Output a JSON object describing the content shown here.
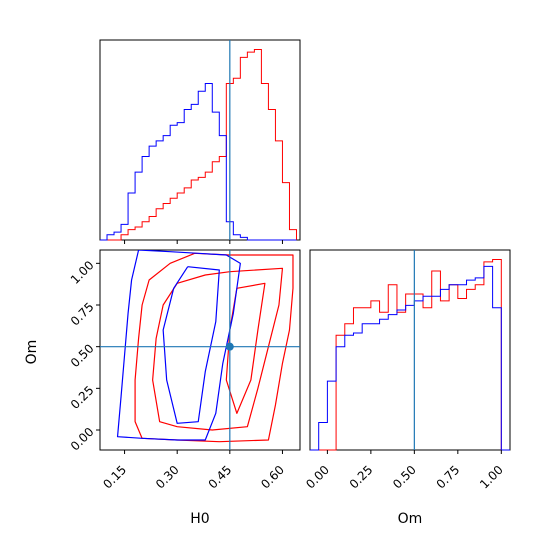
{
  "chart_data": {
    "type": "corner",
    "parameters": [
      "H0",
      "Om"
    ],
    "truth": {
      "H0": 0.45,
      "Om": 0.5
    },
    "truth_color": "#1f77b4",
    "series": [
      {
        "name": "",
        "color": "#ff0000"
      },
      {
        "name": "",
        "color": "#0000ff"
      }
    ],
    "hist_h0": {
      "x_range": [
        0.08,
        0.65
      ],
      "bin_edges": [
        0.08,
        0.1,
        0.12,
        0.14,
        0.16,
        0.18,
        0.2,
        0.22,
        0.24,
        0.26,
        0.28,
        0.3,
        0.32,
        0.34,
        0.36,
        0.38,
        0.4,
        0.42,
        0.44,
        0.46,
        0.48,
        0.5,
        0.52,
        0.54,
        0.56,
        0.58,
        0.6,
        0.62,
        0.64
      ],
      "red": [
        0,
        0,
        0,
        2,
        4,
        5,
        7,
        9,
        12,
        14,
        16,
        18,
        20,
        23,
        24,
        26,
        30,
        32,
        60,
        62,
        70,
        72,
        73,
        60,
        50,
        38,
        22,
        4
      ],
      "blue": [
        0,
        2,
        3,
        6,
        18,
        26,
        32,
        36,
        38,
        40,
        44,
        45,
        50,
        52,
        57,
        60,
        49,
        40,
        7,
        2,
        1,
        0,
        0,
        0,
        0,
        0,
        0,
        0
      ]
    },
    "hist_om": {
      "x_range": [
        -0.1,
        1.05
      ],
      "x_ticks": [
        0.0,
        0.25,
        0.5,
        0.75,
        1.0
      ],
      "x_tick_labels": [
        "0.00",
        "0.25",
        "0.50",
        "0.75",
        "1.00"
      ],
      "bin_edges": [
        -0.1,
        -0.05,
        0.0,
        0.05,
        0.1,
        0.15,
        0.2,
        0.25,
        0.3,
        0.35,
        0.4,
        0.45,
        0.5,
        0.55,
        0.6,
        0.65,
        0.7,
        0.75,
        0.8,
        0.85,
        0.9,
        0.95,
        1.0,
        1.05
      ],
      "red": [
        0,
        0,
        0,
        50,
        55,
        62,
        62,
        65,
        60,
        72,
        60,
        68,
        68,
        62,
        78,
        65,
        72,
        66,
        70,
        72,
        82,
        83,
        0
      ],
      "blue": [
        0,
        12,
        30,
        45,
        50,
        51,
        55,
        55,
        57,
        59,
        61,
        63,
        65,
        67,
        67,
        70,
        72,
        72,
        74,
        75,
        80,
        62,
        0
      ]
    },
    "joint": {
      "x_label": "H0",
      "y_label": "Om",
      "x_range": [
        0.08,
        0.65
      ],
      "y_range": [
        -0.12,
        1.08
      ],
      "x_ticks": [
        0.15,
        0.3,
        0.45,
        0.6
      ],
      "x_tick_labels": [
        "0.15",
        "0.30",
        "0.45",
        "0.60"
      ],
      "y_ticks": [
        0.0,
        0.25,
        0.5,
        0.75,
        1.0
      ],
      "y_tick_labels": [
        "0.00",
        "0.25",
        "0.50",
        "0.75",
        "1.00"
      ],
      "contours": [
        {
          "series": 0,
          "points": [
            [
              0.45,
              1.05
            ],
            [
              0.63,
              1.05
            ],
            [
              0.63,
              0.85
            ],
            [
              0.62,
              0.6
            ],
            [
              0.6,
              0.4
            ],
            [
              0.58,
              0.15
            ],
            [
              0.56,
              -0.06
            ],
            [
              0.42,
              -0.07
            ],
            [
              0.3,
              -0.06
            ],
            [
              0.2,
              -0.05
            ],
            [
              0.18,
              0.05
            ],
            [
              0.18,
              0.3
            ],
            [
              0.19,
              0.55
            ],
            [
              0.2,
              0.75
            ],
            [
              0.22,
              0.9
            ],
            [
              0.28,
              1.0
            ],
            [
              0.35,
              1.06
            ],
            [
              0.45,
              1.05
            ]
          ]
        },
        {
          "series": 0,
          "points": [
            [
              0.45,
              0.95
            ],
            [
              0.6,
              0.97
            ],
            [
              0.59,
              0.75
            ],
            [
              0.56,
              0.5
            ],
            [
              0.53,
              0.25
            ],
            [
              0.5,
              0.02
            ],
            [
              0.4,
              0.0
            ],
            [
              0.3,
              0.02
            ],
            [
              0.25,
              0.05
            ],
            [
              0.23,
              0.3
            ],
            [
              0.24,
              0.55
            ],
            [
              0.26,
              0.75
            ],
            [
              0.3,
              0.88
            ],
            [
              0.38,
              0.93
            ],
            [
              0.45,
              0.95
            ]
          ]
        },
        {
          "series": 0,
          "points": [
            [
              0.47,
              0.85
            ],
            [
              0.55,
              0.88
            ],
            [
              0.53,
              0.6
            ],
            [
              0.51,
              0.3
            ],
            [
              0.47,
              0.1
            ],
            [
              0.44,
              0.3
            ],
            [
              0.45,
              0.6
            ],
            [
              0.47,
              0.85
            ]
          ]
        },
        {
          "series": 1,
          "points": [
            [
              0.19,
              1.08
            ],
            [
              0.28,
              1.07
            ],
            [
              0.36,
              1.06
            ],
            [
              0.44,
              1.05
            ],
            [
              0.48,
              1.0
            ],
            [
              0.46,
              0.7
            ],
            [
              0.43,
              0.4
            ],
            [
              0.41,
              0.1
            ],
            [
              0.38,
              -0.06
            ],
            [
              0.3,
              -0.06
            ],
            [
              0.2,
              -0.05
            ],
            [
              0.13,
              -0.04
            ],
            [
              0.14,
              0.2
            ],
            [
              0.15,
              0.45
            ],
            [
              0.16,
              0.7
            ],
            [
              0.17,
              0.9
            ],
            [
              0.19,
              1.08
            ]
          ]
        },
        {
          "series": 1,
          "points": [
            [
              0.33,
              0.98
            ],
            [
              0.42,
              0.96
            ],
            [
              0.41,
              0.65
            ],
            [
              0.38,
              0.35
            ],
            [
              0.36,
              0.05
            ],
            [
              0.3,
              0.04
            ],
            [
              0.27,
              0.3
            ],
            [
              0.26,
              0.6
            ],
            [
              0.29,
              0.85
            ],
            [
              0.33,
              0.98
            ]
          ]
        }
      ]
    }
  }
}
